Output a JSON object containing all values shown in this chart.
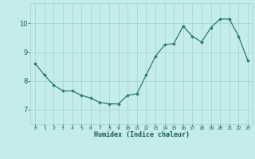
{
  "x": [
    0,
    1,
    2,
    3,
    4,
    5,
    6,
    7,
    8,
    9,
    10,
    11,
    12,
    13,
    14,
    15,
    16,
    17,
    18,
    19,
    20,
    21,
    22,
    23
  ],
  "y": [
    8.6,
    8.2,
    7.85,
    7.65,
    7.65,
    7.5,
    7.4,
    7.25,
    7.2,
    7.2,
    7.5,
    7.55,
    8.2,
    8.85,
    9.25,
    9.3,
    9.9,
    9.55,
    9.35,
    9.85,
    10.15,
    10.15,
    9.55,
    8.7
  ],
  "xlabel": "Humidex (Indice chaleur)",
  "line_color": "#2a7a6a",
  "marker_color": "#2a7a6a",
  "bg_color": "#c5ecec",
  "grid_color": "#a0d0d0",
  "tick_color": "#1a5a4a",
  "label_color": "#1a5a4a",
  "xlim": [
    -0.5,
    23.5
  ],
  "ylim": [
    6.5,
    10.7
  ],
  "yticks": [
    7,
    8,
    9,
    10
  ],
  "xticks": [
    0,
    1,
    2,
    3,
    4,
    5,
    6,
    7,
    8,
    9,
    10,
    11,
    12,
    13,
    14,
    15,
    16,
    17,
    18,
    19,
    20,
    21,
    22,
    23
  ]
}
